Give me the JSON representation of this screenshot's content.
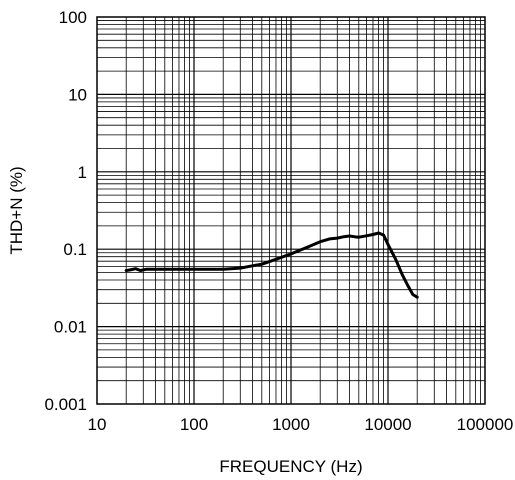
{
  "chart_data": {
    "type": "line",
    "xlabel": "FREQUENCY (Hz)",
    "ylabel": "THD+N (%)",
    "x_scale": "log",
    "y_scale": "log",
    "xlim": [
      10,
      100000
    ],
    "ylim": [
      0.001,
      100
    ],
    "grid": true,
    "x_ticks": [
      "10",
      "100",
      "1000",
      "10000",
      "100000"
    ],
    "y_ticks": [
      "0.001",
      "0.01",
      "0.1",
      "1",
      "10",
      "100"
    ],
    "series": [
      {
        "color": "#000000",
        "x": [
          20,
          22,
          25,
          28,
          32,
          40,
          50,
          63,
          80,
          100,
          150,
          200,
          300,
          400,
          500,
          700,
          1000,
          1500,
          2000,
          2500,
          3000,
          3500,
          4000,
          4500,
          5000,
          6000,
          7000,
          8000,
          9000,
          10000,
          12000,
          14000,
          16000,
          18000,
          20000
        ],
        "y": [
          0.053,
          0.054,
          0.056,
          0.053,
          0.055,
          0.055,
          0.055,
          0.055,
          0.055,
          0.055,
          0.055,
          0.055,
          0.057,
          0.061,
          0.064,
          0.074,
          0.087,
          0.107,
          0.125,
          0.136,
          0.139,
          0.145,
          0.148,
          0.145,
          0.143,
          0.149,
          0.155,
          0.162,
          0.152,
          0.115,
          0.074,
          0.047,
          0.034,
          0.026,
          0.024
        ]
      }
    ]
  }
}
